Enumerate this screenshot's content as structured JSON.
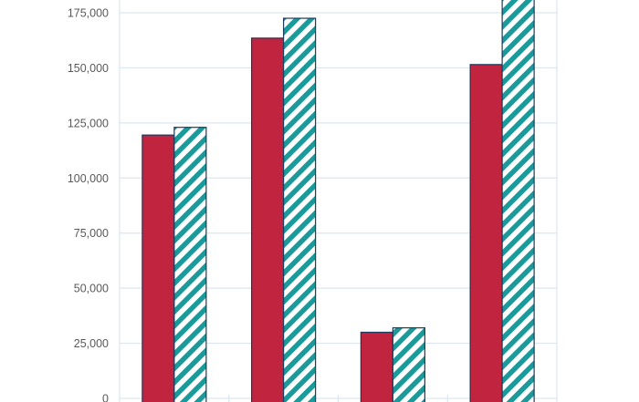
{
  "chart_data": {
    "type": "bar",
    "title": "",
    "xlabel": "",
    "ylabel": "",
    "categories": [
      "",
      "",
      "",
      ""
    ],
    "series": [
      {
        "values": [
          119500,
          163500,
          30000,
          151500
        ],
        "color": "#c0243f",
        "pattern": "solid"
      },
      {
        "values": [
          123000,
          172500,
          32000,
          186000
        ],
        "color": "#1a9a9a",
        "pattern": "diagonal-stripes"
      }
    ],
    "ylim": [
      0,
      180000
    ],
    "yticks": [
      0,
      25000,
      50000,
      75000,
      100000,
      125000,
      150000,
      175000
    ],
    "ytick_labels": [
      "0",
      "25,000",
      "50,000",
      "75,000",
      "100,000",
      "125,000",
      "150,000",
      "175,000"
    ],
    "grid": true,
    "colors": {
      "grid": "#dce6f0",
      "bar_outline": "#1f3a5a",
      "tick_text": "#595959"
    }
  }
}
